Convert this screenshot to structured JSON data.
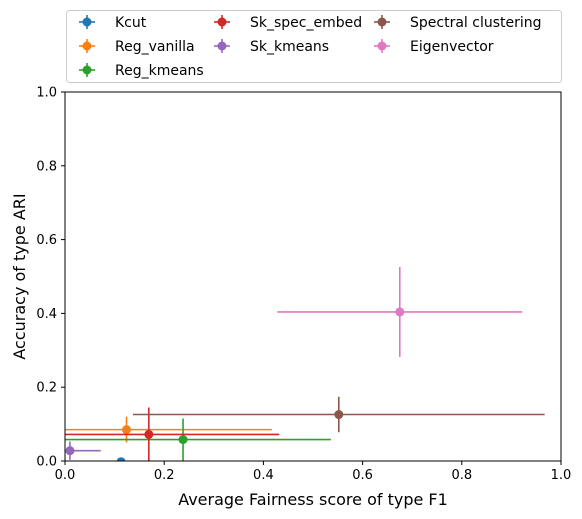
{
  "chart_data": {
    "type": "scatter",
    "xlabel": "Average Fairness score of type F1",
    "ylabel": "Accuracy of type ARI",
    "xlim": [
      0,
      1
    ],
    "ylim": [
      0,
      1
    ],
    "xticks": [
      "0.0",
      "0.2",
      "0.4",
      "0.6",
      "0.8",
      "1.0"
    ],
    "yticks": [
      "0.0",
      "0.2",
      "0.4",
      "0.6",
      "0.8",
      "1.0"
    ],
    "grid": false,
    "legend_position": "top, above plot, 3 columns",
    "series": [
      {
        "name": "Kcut",
        "color": "#1f77b4",
        "x": 0.113,
        "y": -0.002,
        "xerr": 0.185,
        "yerr": 0.0
      },
      {
        "name": "Reg_vanilla",
        "color": "#ff7f0e",
        "x": 0.124,
        "y": 0.085,
        "xerr": 0.293,
        "yerr": 0.035
      },
      {
        "name": "Reg_kmeans",
        "color": "#2ca02c",
        "x": 0.238,
        "y": 0.058,
        "xerr": 0.298,
        "yerr": 0.057
      },
      {
        "name": "Sk_spec_embed",
        "color": "#d62728",
        "x": 0.169,
        "y": 0.072,
        "xerr": 0.263,
        "yerr": 0.073
      },
      {
        "name": "Sk_kmeans",
        "color": "#9467bd",
        "x": 0.01,
        "y": 0.028,
        "xerr": 0.062,
        "yerr": 0.025
      },
      {
        "name": "Spectral clustering",
        "color": "#8c564b",
        "x": 0.552,
        "y": 0.126,
        "xerr": 0.415,
        "yerr": 0.048
      },
      {
        "name": "Eigenvector",
        "color": "#e377c2",
        "x": 0.675,
        "y": 0.404,
        "xerr": 0.247,
        "yerr": 0.122
      }
    ]
  }
}
